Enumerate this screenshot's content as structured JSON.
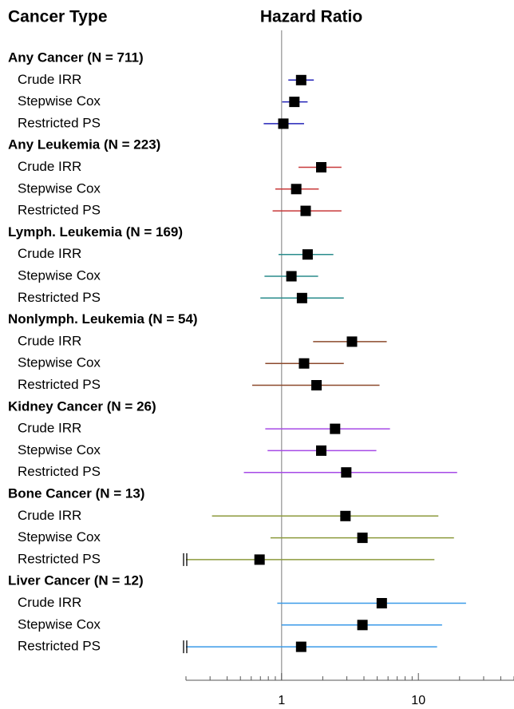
{
  "chart_data": {
    "type": "forest",
    "left_header": "Cancer Type",
    "title": "Hazard Ratio",
    "xscale": "log",
    "xlim": [
      0.2,
      50
    ],
    "xticks": [
      1,
      10
    ],
    "xminorticks": [
      0.2,
      0.3,
      0.4,
      0.5,
      0.6,
      0.7,
      0.8,
      0.9,
      2,
      3,
      4,
      5,
      6,
      7,
      8,
      9,
      20,
      30,
      40,
      50
    ],
    "reference_line": 1,
    "groups": [
      {
        "label": "Any Cancer (N = 711)",
        "color": "#2323b8",
        "rows": [
          {
            "label": "Crude IRR",
            "value": 1.39,
            "lo": 1.12,
            "hi": 1.72
          },
          {
            "label": "Stepwise Cox",
            "value": 1.24,
            "lo": 1.01,
            "hi": 1.55
          },
          {
            "label": "Restricted PS",
            "value": 1.03,
            "lo": 0.74,
            "hi": 1.46
          }
        ]
      },
      {
        "label": "Any Leukemia (N = 223)",
        "color": "#c8393a",
        "rows": [
          {
            "label": "Crude IRR",
            "value": 1.95,
            "lo": 1.33,
            "hi": 2.74
          },
          {
            "label": "Stepwise Cox",
            "value": 1.28,
            "lo": 0.9,
            "hi": 1.87
          },
          {
            "label": "Restricted PS",
            "value": 1.5,
            "lo": 0.86,
            "hi": 2.74
          }
        ]
      },
      {
        "label": "Lymph. Leukemia (N = 169)",
        "color": "#2a8c8c",
        "rows": [
          {
            "label": "Crude IRR",
            "value": 1.55,
            "lo": 0.95,
            "hi": 2.39
          },
          {
            "label": "Stepwise Cox",
            "value": 1.18,
            "lo": 0.75,
            "hi": 1.85
          },
          {
            "label": "Restricted PS",
            "value": 1.41,
            "lo": 0.7,
            "hi": 2.85
          }
        ]
      },
      {
        "label": "Nonlymph. Leukemia (N = 54)",
        "color": "#8c4a2c",
        "rows": [
          {
            "label": "Crude IRR",
            "value": 3.27,
            "lo": 1.7,
            "hi": 5.87
          },
          {
            "label": "Stepwise Cox",
            "value": 1.46,
            "lo": 0.76,
            "hi": 2.85
          },
          {
            "label": "Restricted PS",
            "value": 1.8,
            "lo": 0.61,
            "hi": 5.2
          }
        ]
      },
      {
        "label": "Kidney Cancer (N = 26)",
        "color": "#a64ae6",
        "rows": [
          {
            "label": "Crude IRR",
            "value": 2.46,
            "lo": 0.76,
            "hi": 6.2
          },
          {
            "label": "Stepwise Cox",
            "value": 1.95,
            "lo": 0.79,
            "hi": 4.93
          },
          {
            "label": "Restricted PS",
            "value": 2.97,
            "lo": 0.53,
            "hi": 19.2
          }
        ]
      },
      {
        "label": "Bone Cancer (N = 13)",
        "color": "#8c9a3c",
        "rows": [
          {
            "label": "Crude IRR",
            "value": 2.93,
            "lo": 0.31,
            "hi": 14.0
          },
          {
            "label": "Stepwise Cox",
            "value": 3.9,
            "lo": 0.83,
            "hi": 18.2
          },
          {
            "label": "Restricted PS",
            "value": 0.69,
            "lo": null,
            "hi": 13.1
          }
        ]
      },
      {
        "label": "Liver Cancer (N = 12)",
        "color": "#3a9ae8",
        "rows": [
          {
            "label": "Crude IRR",
            "value": 5.4,
            "lo": 0.93,
            "hi": 22.3
          },
          {
            "label": "Stepwise Cox",
            "value": 3.9,
            "lo": 1.0,
            "hi": 14.9
          },
          {
            "label": "Restricted PS",
            "value": 1.39,
            "lo": null,
            "hi": 13.7
          }
        ]
      }
    ]
  }
}
